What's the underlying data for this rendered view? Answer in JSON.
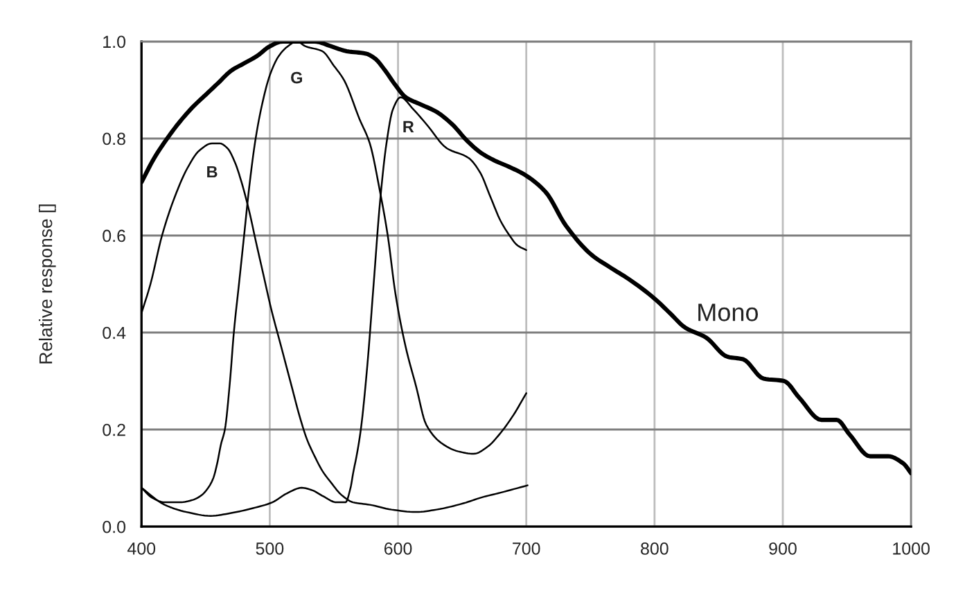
{
  "chart_data": {
    "type": "line",
    "ylabel": "Relative response []",
    "xlim": [
      400,
      1000
    ],
    "xticks": [
      400,
      500,
      600,
      700,
      800,
      900,
      1000
    ],
    "ylim": [
      0,
      1
    ],
    "yticks": [
      {
        "value": 0,
        "label": "0.0"
      },
      0.2,
      0.4,
      0.6,
      0.8,
      {
        "value": 1,
        "label": "1.0"
      }
    ],
    "grid": true,
    "series": [
      {
        "name": "Mono",
        "color": "#000000",
        "x": [
          400,
          410,
          420,
          430,
          440,
          450,
          460,
          470,
          480,
          490,
          500,
          510,
          520,
          535,
          548,
          560,
          575,
          582,
          590,
          598,
          606,
          618,
          630,
          642,
          654,
          665,
          675,
          688,
          699,
          715,
          731,
          751,
          765,
          780,
          800,
          812,
          824,
          840,
          857,
          869,
          885,
          901,
          913,
          930,
          942,
          952,
          968,
          982,
          994,
          1000
        ],
        "values": [
          0.71,
          0.76,
          0.8,
          0.835,
          0.865,
          0.89,
          0.915,
          0.94,
          0.955,
          0.97,
          0.99,
          1.0,
          1.0,
          1.0,
          0.99,
          0.98,
          0.975,
          0.965,
          0.94,
          0.91,
          0.885,
          0.87,
          0.855,
          0.83,
          0.795,
          0.77,
          0.755,
          0.74,
          0.725,
          0.69,
          0.62,
          0.56,
          0.535,
          0.51,
          0.47,
          0.44,
          0.41,
          0.39,
          0.35,
          0.345,
          0.305,
          0.3,
          0.265,
          0.22,
          0.22,
          0.19,
          0.145,
          0.145,
          0.13,
          0.11
        ]
      },
      {
        "name": "B",
        "color": "#000000",
        "x": [
          400,
          407,
          416,
          426,
          436,
          445,
          455,
          461,
          467,
          473,
          478,
          484,
          489,
          495,
          501,
          509,
          517,
          523,
          529,
          535,
          541,
          548,
          556,
          565,
          578,
          595,
          614,
          630,
          651,
          665,
          680,
          701
        ],
        "values": [
          0.44,
          0.5,
          0.6,
          0.68,
          0.74,
          0.775,
          0.79,
          0.79,
          0.78,
          0.75,
          0.71,
          0.65,
          0.59,
          0.52,
          0.45,
          0.37,
          0.29,
          0.23,
          0.18,
          0.145,
          0.115,
          0.09,
          0.065,
          0.05,
          0.045,
          0.035,
          0.03,
          0.035,
          0.048,
          0.06,
          0.07,
          0.085
        ]
      },
      {
        "name": "G",
        "color": "#000000",
        "x": [
          400,
          408,
          418,
          430,
          440,
          447,
          452,
          456,
          459,
          462,
          465,
          469,
          472,
          476,
          480,
          484,
          489,
          494,
          500,
          507,
          514,
          521,
          528,
          541,
          550,
          558,
          570,
          578,
          586,
          592,
          598,
          606,
          614,
          622,
          635,
          647,
          659,
          670,
          679,
          690,
          700
        ],
        "values": [
          0.08,
          0.06,
          0.05,
          0.05,
          0.055,
          0.065,
          0.08,
          0.1,
          0.13,
          0.17,
          0.2,
          0.3,
          0.4,
          0.5,
          0.6,
          0.7,
          0.8,
          0.87,
          0.93,
          0.97,
          0.99,
          1.0,
          0.99,
          0.98,
          0.95,
          0.92,
          0.84,
          0.79,
          0.69,
          0.6,
          0.48,
          0.37,
          0.29,
          0.21,
          0.17,
          0.155,
          0.15,
          0.165,
          0.19,
          0.23,
          0.275
        ]
      },
      {
        "name": "R",
        "color": "#000000",
        "x": [
          400,
          418,
          435,
          454,
          470,
          487,
          502,
          513,
          525,
          533,
          542,
          552,
          559,
          563,
          565,
          568,
          571,
          576,
          581,
          586,
          591,
          596,
          602,
          612,
          622,
          638,
          655,
          664,
          672,
          680,
          687,
          693,
          700
        ],
        "values": [
          0.08,
          0.045,
          0.03,
          0.022,
          0.028,
          0.038,
          0.05,
          0.068,
          0.08,
          0.075,
          0.062,
          0.05,
          0.05,
          0.08,
          0.11,
          0.15,
          0.2,
          0.33,
          0.5,
          0.67,
          0.79,
          0.86,
          0.885,
          0.86,
          0.83,
          0.78,
          0.76,
          0.73,
          0.68,
          0.63,
          0.6,
          0.58,
          0.57
        ]
      }
    ]
  }
}
